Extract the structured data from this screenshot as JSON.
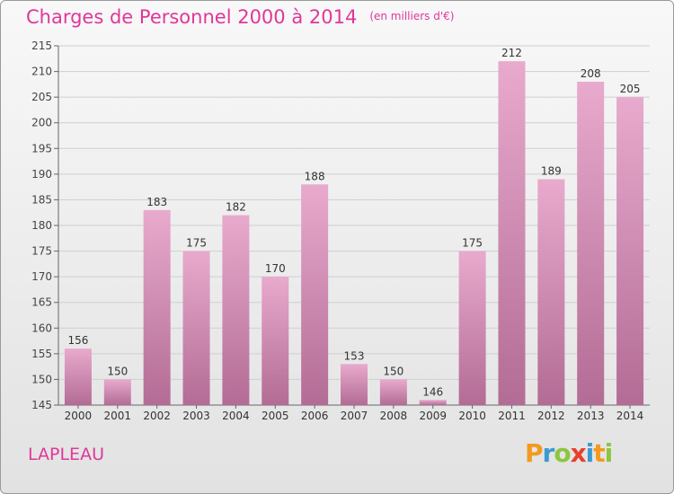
{
  "title": "Charges de Personnel 2000 à 2014",
  "subtitle": "(en milliers d'€)",
  "commune": "LAPLEAU",
  "logo": "Proxiti",
  "colors": {
    "title": "#e0379a",
    "bar_top": "#e8aacd",
    "bar_bottom": "#b36c95"
  },
  "chart_data": {
    "type": "bar",
    "categories": [
      "2000",
      "2001",
      "2002",
      "2003",
      "2004",
      "2005",
      "2006",
      "2007",
      "2008",
      "2009",
      "2010",
      "2011",
      "2012",
      "2013",
      "2014"
    ],
    "values": [
      156,
      150,
      183,
      175,
      182,
      170,
      188,
      153,
      150,
      146,
      175,
      212,
      189,
      208,
      205
    ],
    "ylim": [
      145,
      215
    ],
    "yticks": [
      145,
      150,
      155,
      160,
      165,
      170,
      175,
      180,
      185,
      190,
      195,
      200,
      205,
      210,
      215
    ],
    "grid": "horizontal"
  }
}
